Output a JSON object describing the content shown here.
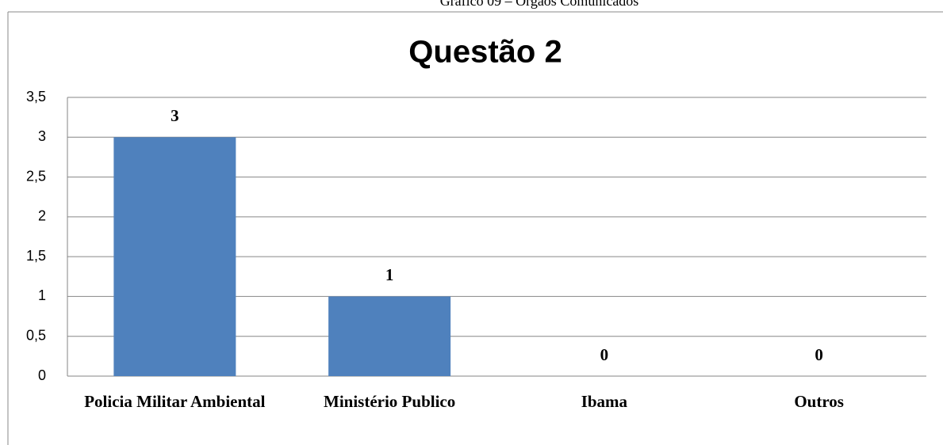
{
  "caption": "Gráfico 09 – Órgãos Comunicados",
  "chart_data": {
    "type": "bar",
    "title": "Questão 2",
    "categories": [
      "Policia Militar Ambiental",
      "Ministério Publico",
      "Ibama",
      "Outros"
    ],
    "values": [
      3,
      1,
      0,
      0
    ],
    "color": "#4f81bd",
    "ylim": [
      0,
      3.5
    ],
    "yticks": [
      0,
      {
        "value": 0.5,
        "label": "0,5"
      },
      1,
      {
        "value": 1.5,
        "label": "1,5"
      },
      2,
      {
        "value": 2.5,
        "label": "2,5"
      },
      3,
      {
        "value": 3.5,
        "label": "3,5"
      }
    ],
    "grid": true
  }
}
